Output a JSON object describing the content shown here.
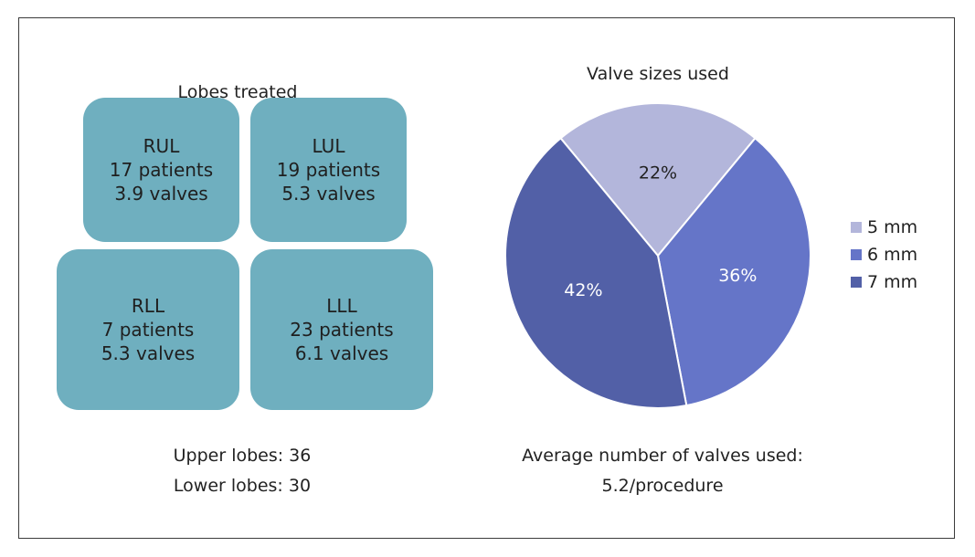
{
  "lobes_title": "Lobes treated",
  "lobes": [
    {
      "name": "RUL",
      "patients": "17 patients",
      "valves": "3.9 valves"
    },
    {
      "name": "LUL",
      "patients": "19 patients",
      "valves": "5.3 valves"
    },
    {
      "name": "RLL",
      "patients": "7 patients",
      "valves": "5.3 valves"
    },
    {
      "name": "LLL",
      "patients": "23 patients",
      "valves": "6.1 valves"
    }
  ],
  "summary": {
    "upper": "Upper lobes: 36",
    "lower": "Lower lobes: 30"
  },
  "pie_caption": {
    "line1": "Average number of valves used:",
    "line2": "5.2/procedure"
  },
  "colors": {
    "lobe_fill": "#6fafbf",
    "mm5": "#b3b6db",
    "mm6": "#6575c8",
    "mm7": "#5260a7"
  },
  "chart_data": {
    "type": "pie",
    "title": "Valve sizes used",
    "slices": [
      {
        "label": "5 mm",
        "value": 22,
        "display": "22%",
        "color": "#b3b6db"
      },
      {
        "label": "6 mm",
        "value": 36,
        "display": "36%",
        "color": "#6575c8"
      },
      {
        "label": "7 mm",
        "value": 42,
        "display": "42%",
        "color": "#5260a7"
      }
    ],
    "legend_position": "right"
  }
}
